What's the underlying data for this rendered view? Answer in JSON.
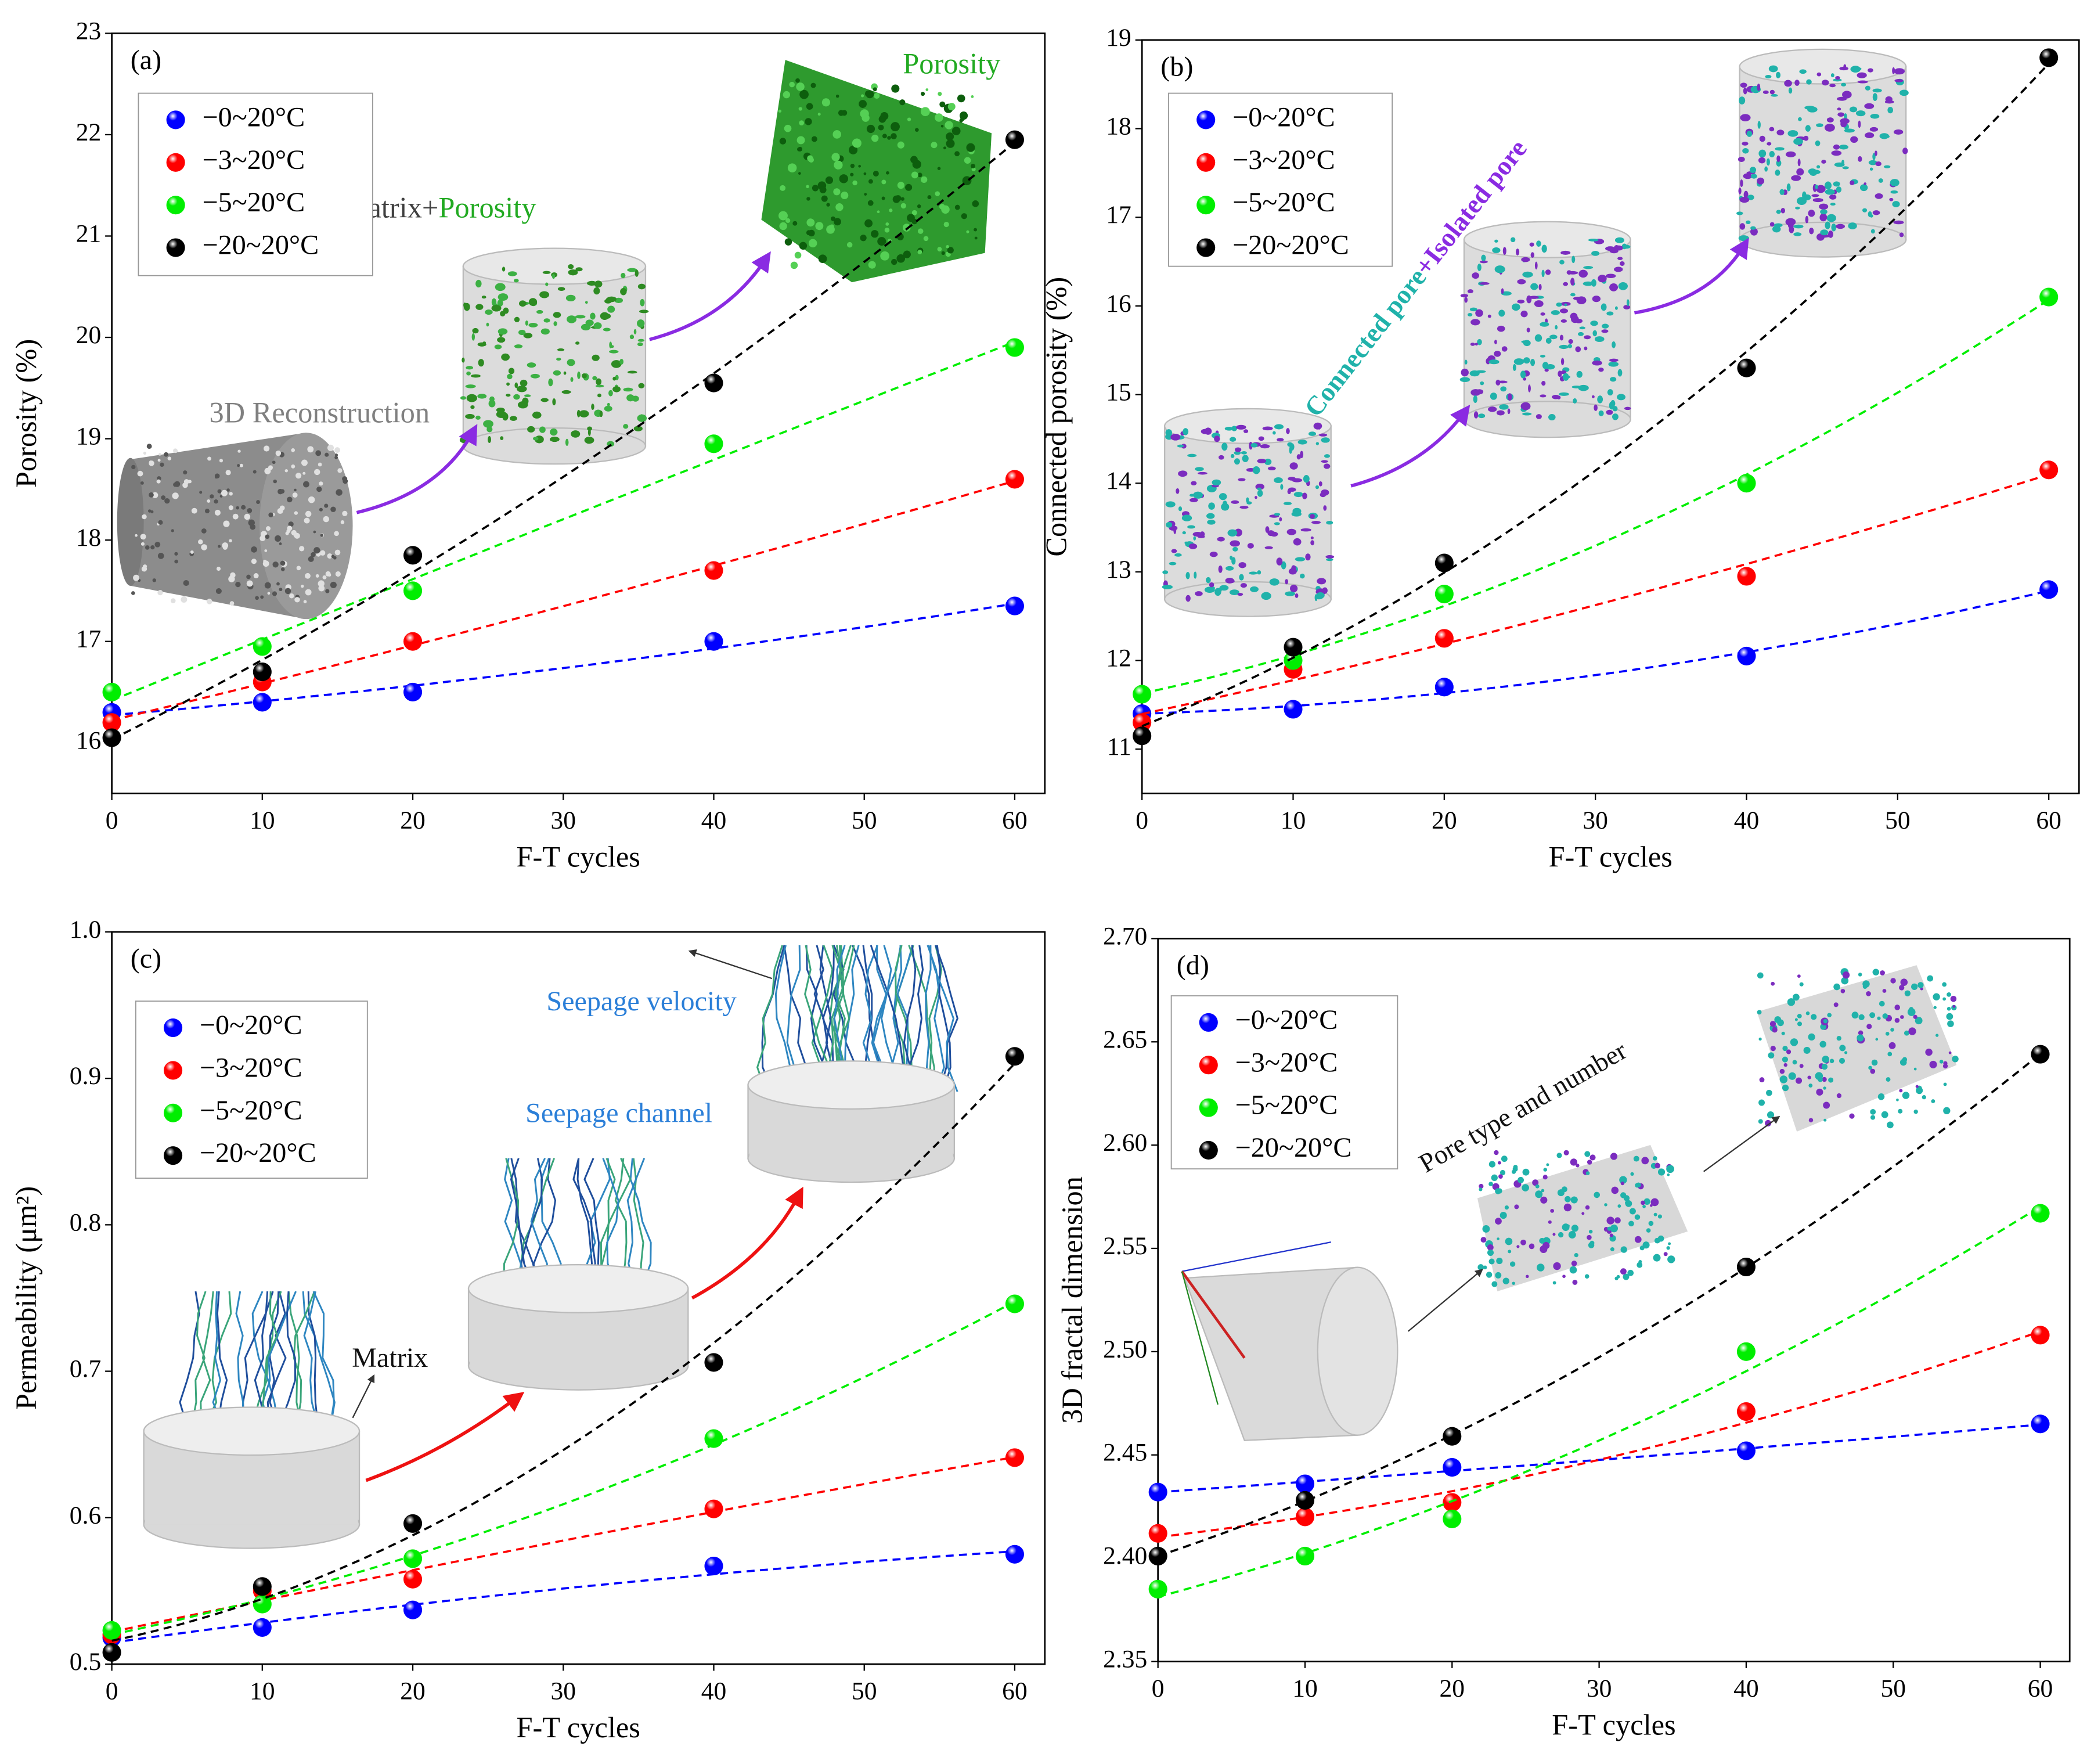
{
  "chart_data": [
    {
      "type": "scatter",
      "panel_label": "(a)",
      "x_label": "F-T cycles",
      "y_label": "Porosity (%)",
      "x": [
        0,
        10,
        20,
        40,
        60
      ],
      "xlim": [
        0,
        62
      ],
      "xticks": [
        0,
        10,
        20,
        30,
        40,
        50,
        60
      ],
      "ylim": [
        15.5,
        23
      ],
      "yticks": [
        16,
        17,
        18,
        19,
        20,
        21,
        22,
        23
      ],
      "fit_line": "dashed",
      "series": [
        {
          "name": "−0~20°C",
          "color": "#0000ff",
          "values": [
            16.3,
            16.4,
            16.5,
            17.0,
            17.35
          ]
        },
        {
          "name": "−3~20°C",
          "color": "#ff0000",
          "values": [
            16.2,
            16.6,
            17.0,
            17.7,
            18.6
          ]
        },
        {
          "name": "−5~20°C",
          "color": "#00ee00",
          "values": [
            16.5,
            16.95,
            17.5,
            18.95,
            19.9
          ]
        },
        {
          "name": "−20~20°C",
          "color": "#000000",
          "values": [
            16.05,
            16.7,
            17.85,
            19.55,
            21.95
          ]
        }
      ],
      "annotations": [
        "3D Reconstruction",
        "Matrix+",
        "Porosity",
        "Porosity"
      ]
    },
    {
      "type": "scatter",
      "panel_label": "(b)",
      "x_label": "F-T cycles",
      "y_label": "Connected porosity (%)",
      "x": [
        0,
        10,
        20,
        40,
        60
      ],
      "xlim": [
        0,
        62
      ],
      "xticks": [
        0,
        10,
        20,
        30,
        40,
        50,
        60
      ],
      "ylim": [
        10.5,
        19
      ],
      "yticks": [
        11,
        12,
        13,
        14,
        15,
        16,
        17,
        18,
        19
      ],
      "fit_line": "dashed",
      "series": [
        {
          "name": "−0~20°C",
          "color": "#0000ff",
          "values": [
            11.4,
            11.45,
            11.7,
            12.05,
            12.8
          ]
        },
        {
          "name": "−3~20°C",
          "color": "#ff0000",
          "values": [
            11.3,
            11.9,
            12.25,
            12.95,
            14.15
          ]
        },
        {
          "name": "−5~20°C",
          "color": "#00ee00",
          "values": [
            11.62,
            12.0,
            12.75,
            14.0,
            16.1
          ]
        },
        {
          "name": "−20~20°C",
          "color": "#000000",
          "values": [
            11.15,
            12.15,
            13.1,
            15.3,
            18.8
          ]
        }
      ],
      "annotations": [
        "Connected pore",
        "+Isolated pore"
      ]
    },
    {
      "type": "scatter",
      "panel_label": "(c)",
      "x_label": "F-T cycles",
      "y_label": "Permeability (μm²)",
      "x": [
        0,
        10,
        20,
        40,
        60
      ],
      "xlim": [
        0,
        62
      ],
      "xticks": [
        0,
        10,
        20,
        30,
        40,
        50,
        60
      ],
      "ylim": [
        0.5,
        1.0
      ],
      "yticks": [
        0.5,
        0.6,
        0.7,
        0.8,
        0.9,
        {
          "value": 1.0,
          "label": "1.0"
        }
      ],
      "fit_line": "dashed",
      "series": [
        {
          "name": "−0~20°C",
          "color": "#0000ff",
          "values": [
            0.518,
            0.525,
            0.537,
            0.567,
            0.575
          ]
        },
        {
          "name": "−3~20°C",
          "color": "#ff0000",
          "values": [
            0.52,
            0.55,
            0.558,
            0.606,
            0.641
          ]
        },
        {
          "name": "−5~20°C",
          "color": "#00ee00",
          "values": [
            0.523,
            0.541,
            0.572,
            0.654,
            0.746
          ]
        },
        {
          "name": "−20~20°C",
          "color": "#000000",
          "values": [
            0.508,
            0.553,
            0.596,
            0.706,
            0.915
          ]
        }
      ],
      "annotations": [
        "Matrix",
        "Seepage channel",
        "Seepage velocity"
      ]
    },
    {
      "type": "scatter",
      "panel_label": "(d)",
      "x_label": "F-T cycles",
      "y_label": "3D fractal dimension",
      "x": [
        0,
        10,
        20,
        40,
        60
      ],
      "xlim": [
        0,
        62
      ],
      "xticks": [
        0,
        10,
        20,
        30,
        40,
        50,
        60
      ],
      "ylim": [
        2.35,
        2.7
      ],
      "yticks": [
        2.35,
        {
          "value": 2.4,
          "label": "2.40"
        },
        2.45,
        {
          "value": 2.5,
          "label": "2.50"
        },
        2.55,
        {
          "value": 2.6,
          "label": "2.60"
        },
        2.65,
        {
          "value": 2.7,
          "label": "2.70"
        }
      ],
      "fit_line": "dashed",
      "series": [
        {
          "name": "−0~20°C",
          "color": "#0000ff",
          "values": [
            2.432,
            2.436,
            2.444,
            2.452,
            2.465
          ]
        },
        {
          "name": "−3~20°C",
          "color": "#ff0000",
          "values": [
            2.412,
            2.42,
            2.427,
            2.471,
            2.508
          ]
        },
        {
          "name": "−5~20°C",
          "color": "#00ee00",
          "values": [
            2.385,
            2.401,
            2.419,
            2.5,
            2.567
          ]
        },
        {
          "name": "−20~20°C",
          "color": "#000000",
          "values": [
            2.401,
            2.428,
            2.459,
            2.541,
            2.644
          ]
        }
      ],
      "annotations": [
        "Pore type and number"
      ]
    }
  ]
}
